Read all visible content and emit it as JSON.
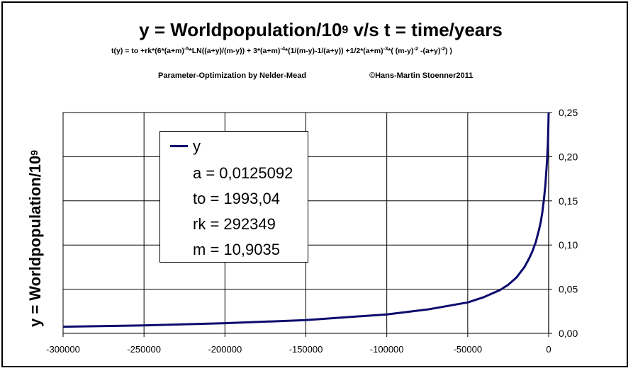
{
  "chart_data": {
    "type": "line",
    "title_main": "y = Worldpopulation/10",
    "title_sup": "9",
    "title_tail": " v/s t = time/years",
    "formula_parts": [
      {
        "t": "t(y) = to  +rk*(6*(a+m)"
      },
      {
        "sup": "-5"
      },
      {
        "t": "*LN((a+y)/(m-y)) + 3*(a+m)"
      },
      {
        "sup": "-4"
      },
      {
        "t": "*(1/(m-y)-1/(a+y)) +1/2*(a+m)"
      },
      {
        "sup": "-3"
      },
      {
        "t": "*( (m-y)"
      },
      {
        "sup": "-2"
      },
      {
        "t": " -(a+y)"
      },
      {
        "sup": "-2"
      },
      {
        "t": ") )"
      }
    ],
    "subtitle_left": "Parameter-Optimization by Nelder-Mead",
    "subtitle_right": "©Hans-Martin Stoenner2011",
    "ylabel_main": "y = Worldpopulation/10",
    "ylabel_sup": "9",
    "xlim": [
      -300000,
      0
    ],
    "ylim": [
      0,
      0.25
    ],
    "x_ticks": [
      "-300000",
      "-250000",
      "-200000",
      "-150000",
      "-100000",
      "-50000",
      "0"
    ],
    "y_ticks": [
      "0,00",
      "0,05",
      "0,10",
      "0,15",
      "0,20",
      "0,25"
    ],
    "grid": true,
    "legend_placement": "top-left",
    "series": [
      {
        "name": "y",
        "color": "#0b0b6e",
        "x": [
          -300000,
          -250000,
          -200000,
          -150000,
          -100000,
          -75000,
          -50000,
          -40000,
          -30000,
          -25000,
          -20000,
          -15000,
          -12000,
          -10000,
          -8000,
          -6000,
          -5000,
          -4000,
          -3000,
          -2000,
          -1000,
          -500,
          -200,
          0
        ],
        "y": [
          0.0075,
          0.009,
          0.0115,
          0.015,
          0.0215,
          0.027,
          0.035,
          0.041,
          0.049,
          0.055,
          0.063,
          0.075,
          0.085,
          0.093,
          0.103,
          0.117,
          0.125,
          0.136,
          0.15,
          0.168,
          0.195,
          0.215,
          0.232,
          0.25
        ]
      }
    ],
    "legend_params": [
      "a = 0,0125092",
      "to = 1993,04",
      "rk = 292349",
      "m = 10,9035"
    ]
  }
}
